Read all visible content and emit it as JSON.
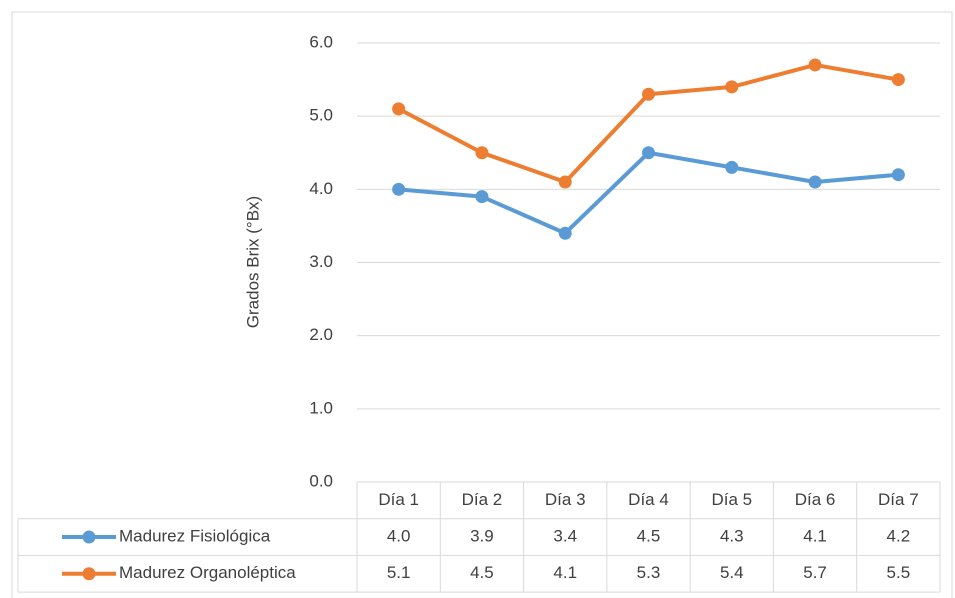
{
  "chart_data": {
    "type": "line",
    "y_label": "Grados Brix (°Bx)",
    "categories": [
      "Día 1",
      "Día 2",
      "Día 3",
      "Día 4",
      "Día 5",
      "Día 6",
      "Día 7"
    ],
    "series": [
      {
        "name": "Madurez Fisiológica",
        "color": "#5b9bd5",
        "values": [
          4.0,
          3.9,
          3.4,
          4.5,
          4.3,
          4.1,
          4.2
        ],
        "value_labels": [
          "4.0",
          "3.9",
          "3.4",
          "4.5",
          "4.3",
          "4.1",
          "4.2"
        ]
      },
      {
        "name": "Madurez Organoléptica",
        "color": "#ed7d31",
        "values": [
          5.1,
          4.5,
          4.1,
          5.3,
          5.4,
          5.7,
          5.5
        ],
        "value_labels": [
          "5.1",
          "4.5",
          "4.1",
          "5.3",
          "5.4",
          "5.7",
          "5.5"
        ]
      }
    ],
    "ylim": [
      0,
      6
    ],
    "yticks": [
      {
        "value": 0,
        "label": "0.0"
      },
      {
        "value": 1,
        "label": "1.0"
      },
      {
        "value": 2,
        "label": "2.0"
      },
      {
        "value": 3,
        "label": "3.0"
      },
      {
        "value": 4,
        "label": "4.0"
      },
      {
        "value": 5,
        "label": "5.0"
      },
      {
        "value": 6,
        "label": "6.0"
      }
    ],
    "grid": true
  }
}
